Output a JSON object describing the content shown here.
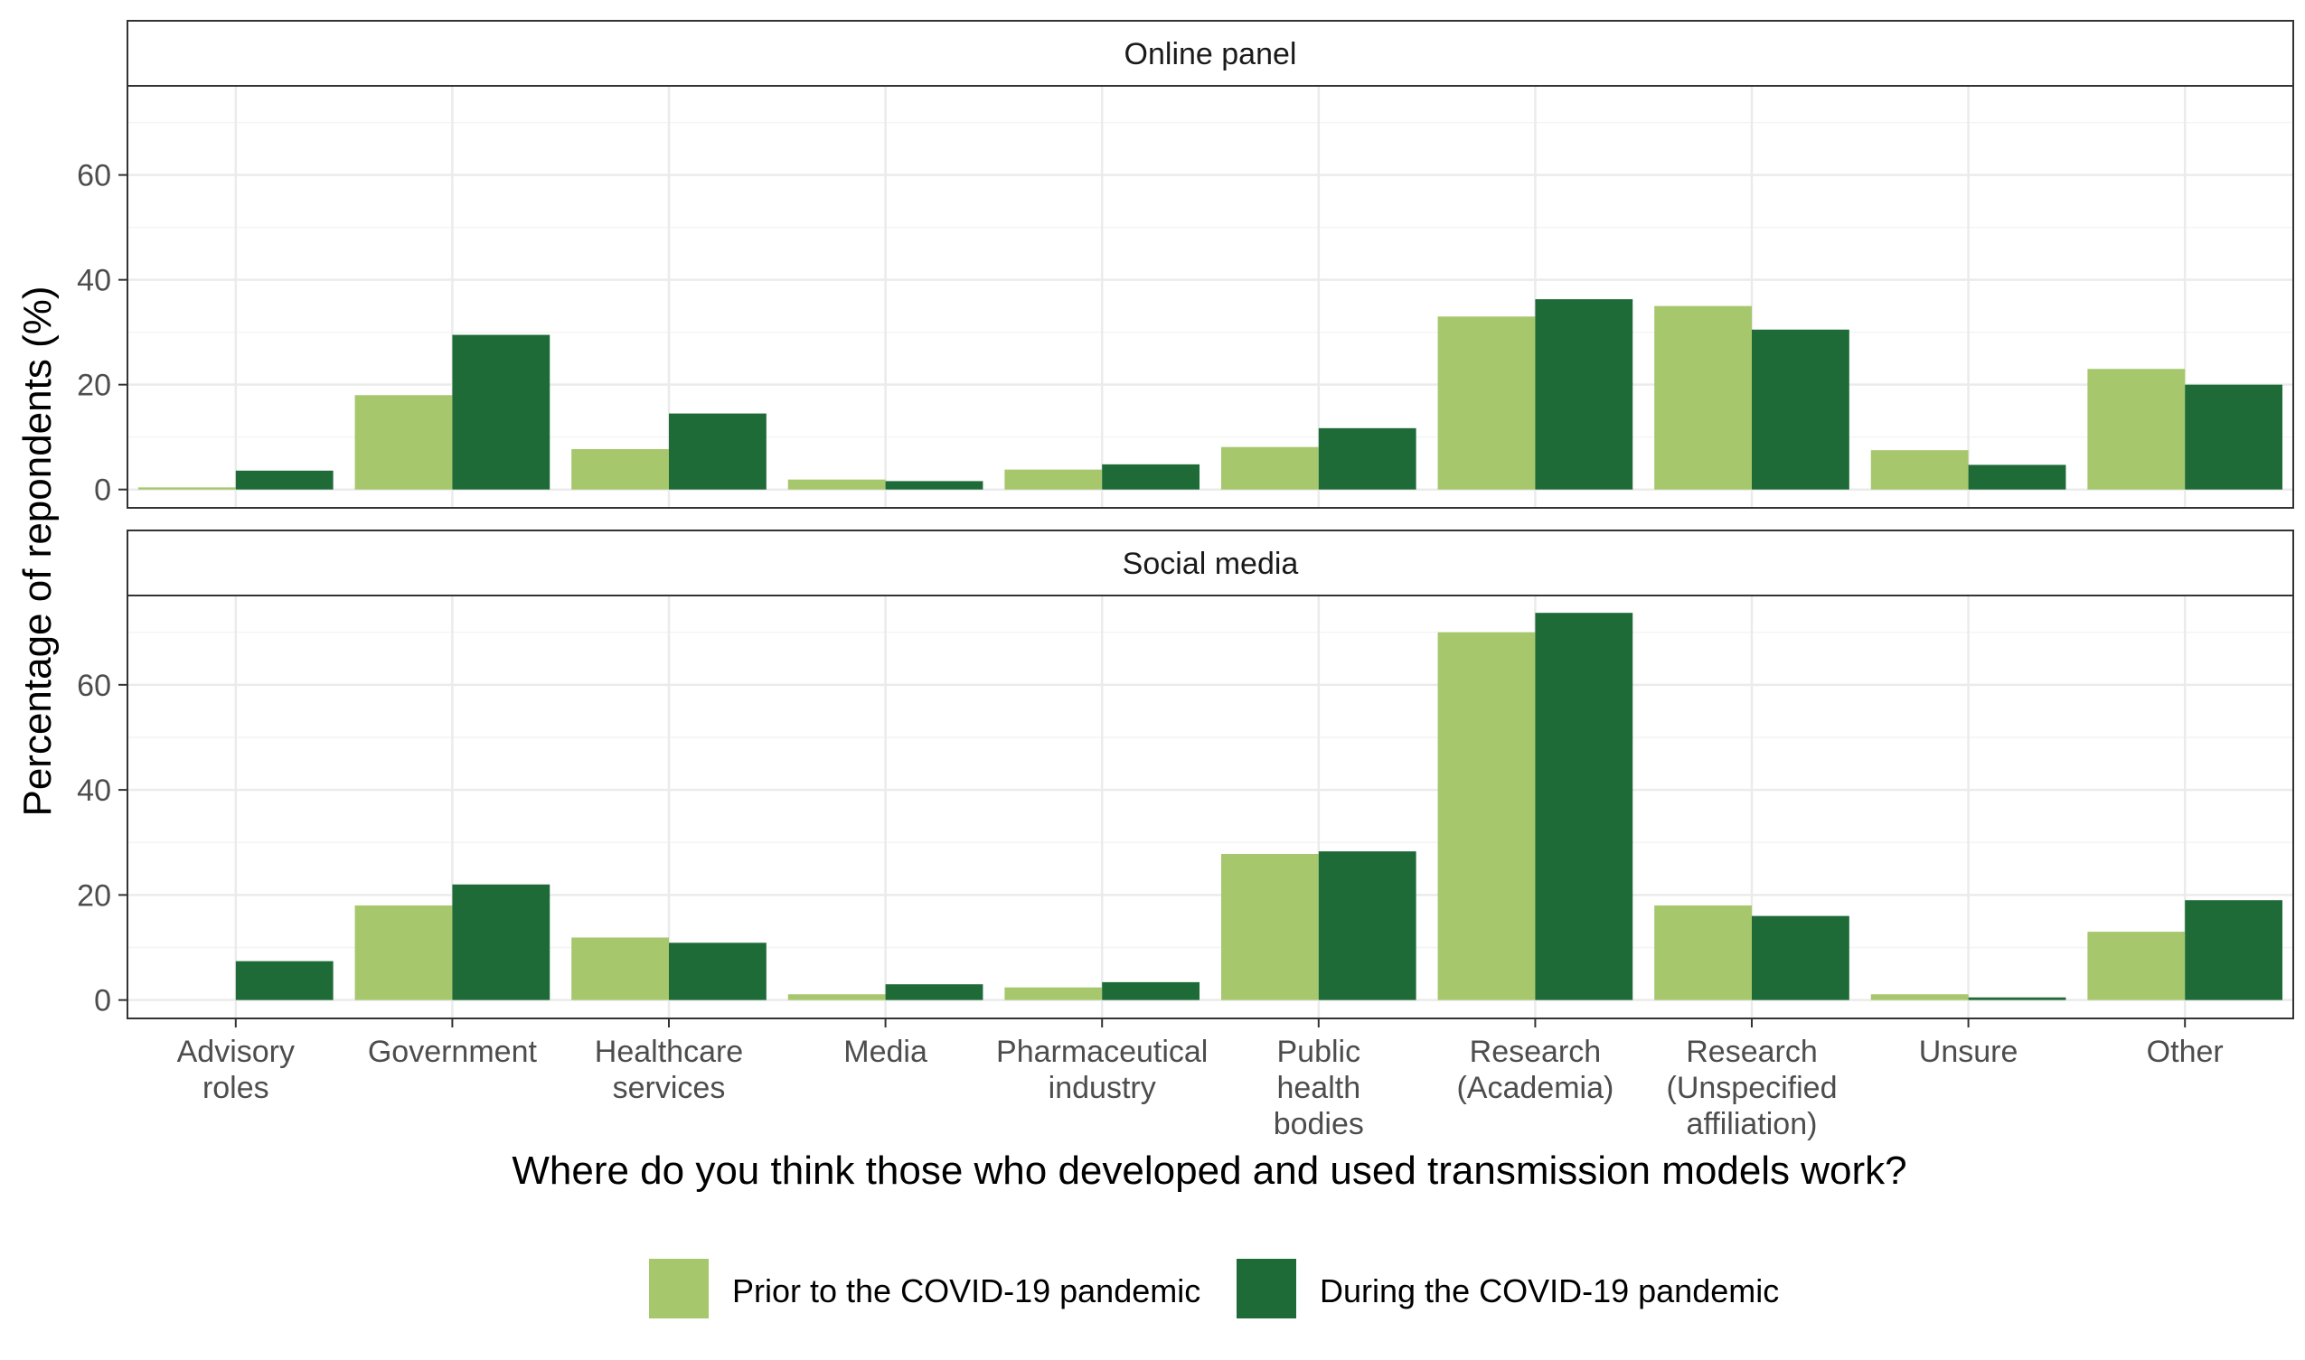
{
  "chart_data": {
    "type": "bar",
    "categories": [
      "Advisory\nroles",
      "Government",
      "Healthcare\nservices",
      "Media",
      "Pharmaceutical\nindustry",
      "Public\nhealth\nbodies",
      "Research\n(Academia)",
      "Research\n(Unspecified\naffiliation)",
      "Unsure",
      "Other"
    ],
    "xlabel": "Where do you think those who developed and used transmission models work?",
    "ylabel": "Percentage of repondents (%)",
    "ylim": [
      -3.5,
      77
    ],
    "yticks": [
      0,
      20,
      40,
      60
    ],
    "grid": true,
    "legend_position": "bottom",
    "colors": {
      "prior": "#a6c76c",
      "during": "#1e6b38",
      "strip_bg": "#ffffff",
      "grid": "#ebebeb"
    },
    "legend": [
      {
        "key": "prior",
        "label": "Prior to the COVID-19 pandemic"
      },
      {
        "key": "during",
        "label": "During the COVID-19 pandemic"
      }
    ],
    "panels": [
      {
        "title": "Online panel",
        "series": [
          {
            "key": "prior",
            "values": [
              0.4,
              18,
              7.7,
              1.9,
              3.8,
              8.1,
              33,
              35,
              7.5,
              23
            ]
          },
          {
            "key": "during",
            "values": [
              3.6,
              29.5,
              14.5,
              1.6,
              4.8,
              11.7,
              36.3,
              30.5,
              4.7,
              20
            ]
          }
        ]
      },
      {
        "title": "Social media",
        "series": [
          {
            "key": "prior",
            "values": [
              0,
              18,
              11.9,
              1.1,
              2.4,
              27.8,
              70,
              18,
              1.1,
              13
            ]
          },
          {
            "key": "during",
            "values": [
              7.4,
              22,
              10.9,
              3,
              3.4,
              28.3,
              73.7,
              16,
              0.5,
              19
            ]
          }
        ]
      }
    ]
  }
}
